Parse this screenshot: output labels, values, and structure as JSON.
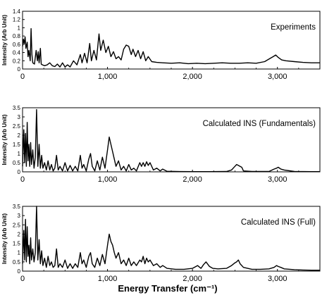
{
  "chart_data": [
    {
      "type": "line",
      "annotation": "Experiments",
      "ylabel": "Intensity (Arb Unit)",
      "xlabel": "",
      "xlim": [
        0,
        3500
      ],
      "ylim": [
        0,
        1.4
      ],
      "yticks": [
        "0",
        "0.2",
        "0.4",
        "0.6",
        "0.8",
        "1",
        "1.2",
        "1.4"
      ],
      "xticks": [
        "0",
        "1,000",
        "2,000",
        "3,000"
      ],
      "series": [
        {
          "x": [
            0,
            10,
            20,
            30,
            40,
            55,
            65,
            75,
            90,
            100,
            110,
            120,
            140,
            160,
            175,
            185,
            195,
            210,
            220,
            235,
            260,
            290,
            320,
            350,
            380,
            410,
            440,
            470,
            500,
            530,
            560,
            600,
            640,
            680,
            700,
            730,
            760,
            790,
            810,
            840,
            870,
            900,
            920,
            950,
            980,
            1010,
            1040,
            1070,
            1100,
            1130,
            1160,
            1190,
            1220,
            1250,
            1280,
            1300,
            1330,
            1360,
            1390,
            1420,
            1450,
            1480,
            1520,
            1580,
            1650,
            1750,
            1850,
            1950,
            2050,
            2150,
            2250,
            2350,
            2450,
            2550,
            2650,
            2750,
            2850,
            2900,
            2950,
            2980,
            3010,
            3050,
            3100,
            3200,
            3300,
            3400,
            3500
          ],
          "y": [
            0.55,
            0.72,
            0.62,
            0.78,
            0.5,
            0.65,
            0.3,
            0.45,
            0.2,
            0.98,
            0.35,
            0.15,
            0.12,
            0.45,
            0.2,
            0.42,
            0.15,
            0.5,
            0.12,
            0.1,
            0.08,
            0.1,
            0.15,
            0.08,
            0.06,
            0.12,
            0.05,
            0.15,
            0.05,
            0.1,
            0.05,
            0.2,
            0.1,
            0.35,
            0.15,
            0.38,
            0.15,
            0.62,
            0.2,
            0.45,
            0.22,
            0.85,
            0.45,
            0.7,
            0.4,
            0.55,
            0.3,
            0.42,
            0.25,
            0.3,
            0.22,
            0.48,
            0.58,
            0.55,
            0.35,
            0.48,
            0.3,
            0.45,
            0.25,
            0.42,
            0.2,
            0.3,
            0.18,
            0.16,
            0.15,
            0.14,
            0.15,
            0.13,
            0.14,
            0.13,
            0.14,
            0.15,
            0.14,
            0.14,
            0.15,
            0.14,
            0.18,
            0.24,
            0.3,
            0.34,
            0.28,
            0.22,
            0.2,
            0.18,
            0.16,
            0.15,
            0.15
          ]
        }
      ]
    },
    {
      "type": "line",
      "annotation": "Calculated INS (Fundamentals)",
      "ylabel": "Intensity (Arb Unit)",
      "xlabel": "",
      "xlim": [
        0,
        3500
      ],
      "ylim": [
        0,
        3.5
      ],
      "yticks": [
        "0",
        "0.5",
        "1",
        "1.5",
        "2",
        "2.5",
        "3",
        "3.5"
      ],
      "xticks": [
        "0",
        "1,000",
        "2,000",
        "3,000"
      ],
      "series": [
        {
          "x": [
            0,
            15,
            25,
            35,
            45,
            55,
            65,
            75,
            85,
            95,
            105,
            120,
            135,
            150,
            165,
            180,
            195,
            210,
            225,
            240,
            260,
            280,
            300,
            320,
            340,
            360,
            380,
            400,
            420,
            440,
            470,
            500,
            530,
            560,
            590,
            620,
            650,
            680,
            700,
            720,
            750,
            780,
            800,
            820,
            850,
            880,
            910,
            940,
            970,
            1000,
            1020,
            1040,
            1060,
            1080,
            1100,
            1130,
            1160,
            1190,
            1220,
            1250,
            1280,
            1310,
            1340,
            1380,
            1400,
            1420,
            1440,
            1460,
            1480,
            1500,
            1540,
            1580,
            1620,
            1650,
            1700,
            1800,
            2000,
            2200,
            2400,
            2460,
            2480,
            2500,
            2520,
            2540,
            2560,
            2580,
            2600,
            2700,
            2900,
            2960,
            2990,
            3010,
            3040,
            3080,
            3200,
            3400,
            3500
          ],
          "y": [
            0.3,
            2.3,
            0.5,
            2.1,
            0.3,
            2.7,
            0.6,
            1.5,
            0.3,
            1.6,
            0.4,
            1.2,
            0.2,
            0.8,
            3.4,
            0.3,
            1.5,
            0.2,
            0.9,
            0.2,
            0.5,
            0.1,
            0.6,
            0.1,
            0.4,
            0.05,
            0.2,
            0.9,
            0.1,
            0.3,
            0.05,
            0.5,
            0.05,
            0.35,
            0.05,
            0.3,
            0.05,
            0.9,
            0.2,
            0.4,
            0.05,
            0.7,
            1.0,
            0.3,
            0.05,
            0.6,
            0.1,
            0.8,
            0.2,
            1.2,
            1.9,
            1.5,
            1.1,
            0.7,
            0.3,
            0.6,
            0.1,
            0.3,
            0.05,
            0.4,
            0.1,
            0.2,
            0.05,
            0.5,
            0.3,
            0.5,
            0.3,
            0.55,
            0.35,
            0.5,
            0.1,
            0.2,
            0.05,
            0.15,
            0.03,
            0.02,
            0.01,
            0.01,
            0.02,
            0.1,
            0.2,
            0.3,
            0.4,
            0.35,
            0.3,
            0.25,
            0.05,
            0.02,
            0.02,
            0.15,
            0.2,
            0.25,
            0.15,
            0.1,
            0.02,
            0.01,
            0.01
          ]
        }
      ]
    },
    {
      "type": "line",
      "annotation": "Calculated INS (Full)",
      "ylabel": "Intensity (Arb Unit)",
      "xlabel": "Energy Transfer (cm⁻¹)",
      "xlim": [
        0,
        3500
      ],
      "ylim": [
        0,
        3.5
      ],
      "yticks": [
        "0",
        "0.5",
        "1",
        "1.5",
        "2",
        "2.5",
        "3",
        "3.5"
      ],
      "xticks": [
        "0",
        "1,000",
        "2,000",
        "3,000"
      ],
      "series": [
        {
          "x": [
            0,
            15,
            25,
            35,
            45,
            55,
            65,
            75,
            85,
            95,
            105,
            120,
            135,
            150,
            165,
            180,
            195,
            210,
            225,
            240,
            260,
            280,
            300,
            320,
            340,
            360,
            380,
            400,
            420,
            440,
            470,
            500,
            530,
            560,
            590,
            620,
            650,
            680,
            700,
            720,
            750,
            780,
            800,
            820,
            850,
            880,
            910,
            940,
            970,
            1000,
            1020,
            1040,
            1060,
            1080,
            1100,
            1130,
            1160,
            1190,
            1220,
            1250,
            1280,
            1310,
            1340,
            1380,
            1400,
            1420,
            1440,
            1460,
            1480,
            1500,
            1540,
            1580,
            1620,
            1650,
            1700,
            1800,
            1900,
            2000,
            2060,
            2100,
            2130,
            2160,
            2200,
            2240,
            2300,
            2400,
            2460,
            2500,
            2520,
            2540,
            2560,
            2600,
            2700,
            2800,
            2900,
            2960,
            2990,
            3010,
            3040,
            3080,
            3200,
            3300,
            3400,
            3500
          ],
          "y": [
            0.4,
            2.2,
            0.6,
            2.8,
            0.5,
            2.4,
            0.8,
            1.4,
            0.4,
            1.8,
            0.6,
            1.2,
            0.5,
            1.0,
            3.5,
            0.6,
            1.7,
            0.4,
            1.1,
            0.3,
            0.7,
            0.2,
            0.8,
            0.3,
            0.5,
            0.2,
            0.3,
            1.2,
            0.2,
            0.4,
            0.2,
            0.6,
            0.15,
            0.4,
            0.15,
            0.4,
            0.2,
            1.0,
            0.4,
            0.6,
            0.2,
            0.8,
            1.0,
            0.4,
            0.2,
            0.7,
            0.3,
            0.9,
            0.4,
            1.4,
            2.0,
            1.6,
            1.4,
            1.0,
            0.7,
            1.0,
            0.4,
            0.6,
            0.3,
            0.7,
            0.3,
            0.5,
            0.3,
            0.6,
            0.5,
            0.8,
            0.4,
            0.7,
            0.5,
            0.6,
            0.3,
            0.4,
            0.2,
            0.3,
            0.15,
            0.1,
            0.1,
            0.15,
            0.3,
            0.15,
            0.35,
            0.5,
            0.25,
            0.15,
            0.12,
            0.15,
            0.3,
            0.45,
            0.5,
            0.6,
            0.4,
            0.2,
            0.1,
            0.1,
            0.12,
            0.2,
            0.3,
            0.25,
            0.2,
            0.12,
            0.08,
            0.06,
            0.05,
            0.05
          ]
        }
      ]
    }
  ]
}
